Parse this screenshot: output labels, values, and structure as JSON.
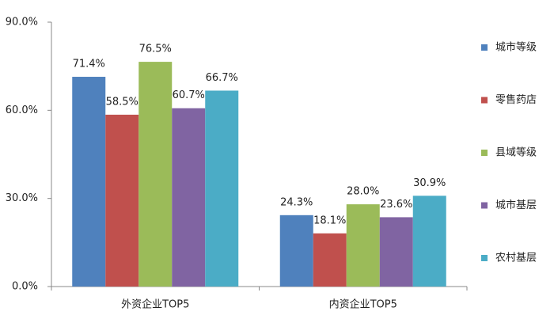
{
  "chart_data": {
    "type": "bar",
    "categories": [
      "外资企业TOP5",
      "内资企业TOP5"
    ],
    "series": [
      {
        "name": "城市等级",
        "color": "#4f81bd",
        "values": [
          71.4,
          24.3
        ],
        "value_labels": [
          "71.4%",
          "24.3%"
        ]
      },
      {
        "name": "零售药店",
        "color": "#c0504d",
        "values": [
          58.5,
          18.1
        ],
        "value_labels": [
          "58.5%",
          "18.1%"
        ]
      },
      {
        "name": "县域等级",
        "color": "#9bbb59",
        "values": [
          76.5,
          28.0
        ],
        "value_labels": [
          "76.5%",
          "28.0%"
        ]
      },
      {
        "name": "城市基层",
        "color": "#8064a2",
        "values": [
          60.7,
          23.6
        ],
        "value_labels": [
          "60.7%",
          "23.6%"
        ]
      },
      {
        "name": "农村基层",
        "color": "#4bacc6",
        "values": [
          66.7,
          30.9
        ],
        "value_labels": [
          "66.7%",
          "30.9%"
        ]
      }
    ],
    "ylim": [
      0,
      90
    ],
    "yticks": [
      {
        "value": 0,
        "label": "0.0%"
      },
      {
        "value": 30,
        "label": "30.0%"
      },
      {
        "value": 60,
        "label": "60.0%"
      },
      {
        "value": 90,
        "label": "90.0%"
      }
    ],
    "legend": "right"
  }
}
